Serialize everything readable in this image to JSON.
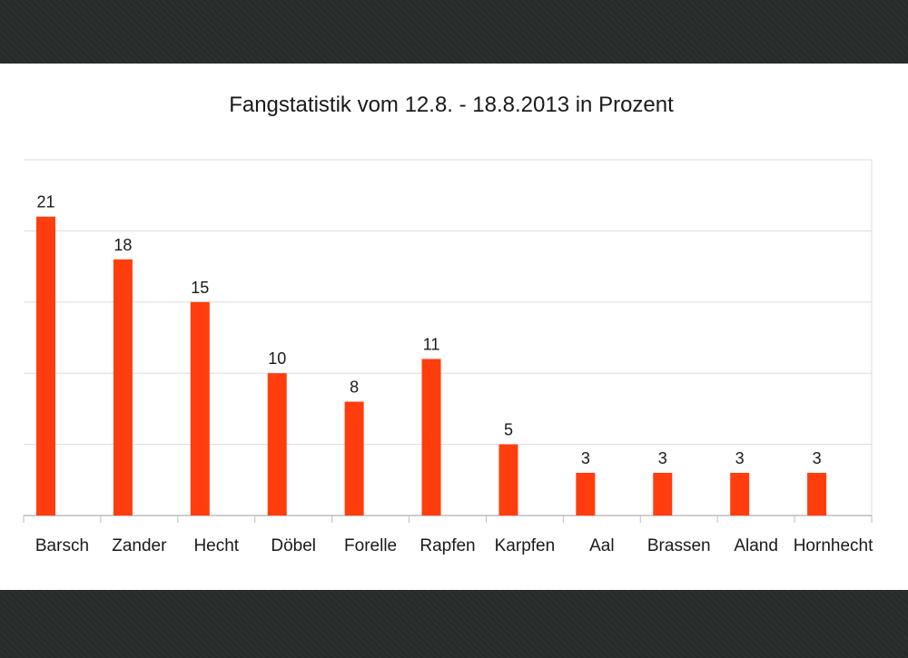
{
  "chart_data": {
    "type": "bar",
    "title": "Fangstatistik vom 12.8. - 18.8.2013 in Prozent",
    "categories": [
      "Barsch",
      "Zander",
      "Hecht",
      "Döbel",
      "Forelle",
      "Rapfen",
      "Karpfen",
      "Aal",
      "Brassen",
      "Aland",
      "Hornhecht"
    ],
    "values": [
      21,
      18,
      15,
      10,
      8,
      11,
      5,
      3,
      3,
      3,
      3
    ],
    "xlabel": "",
    "ylabel": "",
    "ylim": [
      0,
      25
    ],
    "grid": true,
    "legend": "none",
    "colors": {
      "bar": "#ff3d0d",
      "grid": "#dcdcdc",
      "axis": "#bdbdbd",
      "panel": "#ffffff",
      "frame": "#272b29"
    }
  }
}
